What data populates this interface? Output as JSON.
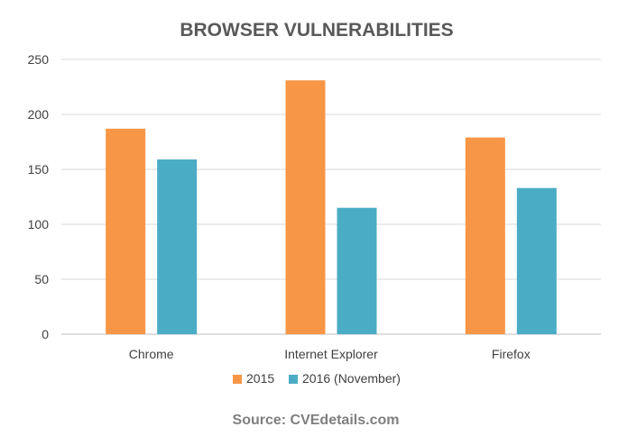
{
  "chart_data": {
    "type": "bar",
    "title": "BROWSER VULNERABILITIES",
    "categories": [
      "Chrome",
      "Internet Explorer",
      "Firefox"
    ],
    "series": [
      {
        "name": "2015",
        "values": [
          187,
          231,
          179
        ],
        "color": "#f79646"
      },
      {
        "name": "2016 (November)",
        "values": [
          159,
          115,
          133
        ],
        "color": "#4bacc6"
      }
    ],
    "xlabel": "",
    "ylabel": "",
    "ylim": [
      0,
      250
    ],
    "yticks": [
      "0",
      "50",
      "100",
      "150",
      "200",
      "250"
    ],
    "ytick_values": [
      0,
      50,
      100,
      150,
      200,
      250
    ],
    "grid": true,
    "legend_position": "bottom"
  },
  "footer": {
    "source": "Source: CVEdetails.com"
  }
}
